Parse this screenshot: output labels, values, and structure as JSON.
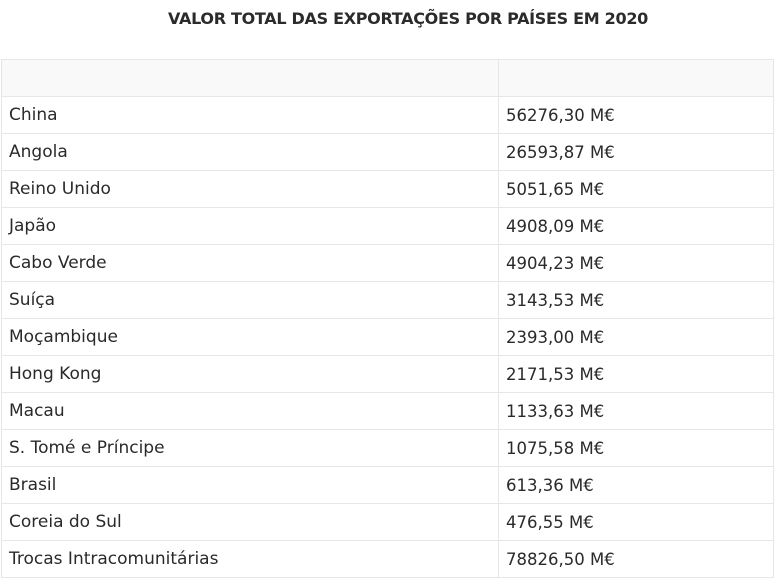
{
  "title": "VALOR TOTAL DAS EXPORTAÇÕES POR PAÍSES EM 2020",
  "table": {
    "headers": [
      "",
      ""
    ],
    "rows": [
      {
        "country": "China",
        "value": "56276,30 M€"
      },
      {
        "country": "Angola",
        "value": "26593,87 M€"
      },
      {
        "country": "Reino Unido",
        "value": "5051,65 M€"
      },
      {
        "country": "Japão",
        "value": "4908,09 M€"
      },
      {
        "country": "Cabo Verde",
        "value": "4904,23 M€"
      },
      {
        "country": "Suíça",
        "value": "3143,53 M€"
      },
      {
        "country": "Moçambique",
        "value": "2393,00 M€"
      },
      {
        "country": "Hong Kong",
        "value": "2171,53 M€"
      },
      {
        "country": "Macau",
        "value": "1133,63 M€"
      },
      {
        "country": "S. Tomé e Príncipe",
        "value": "1075,58 M€"
      },
      {
        "country": "Brasil",
        "value": "613,36 M€"
      },
      {
        "country": "Coreia do Sul",
        "value": "476,55 M€"
      },
      {
        "country": "Trocas Intracomunitárias",
        "value": "78826,50 M€"
      }
    ]
  }
}
